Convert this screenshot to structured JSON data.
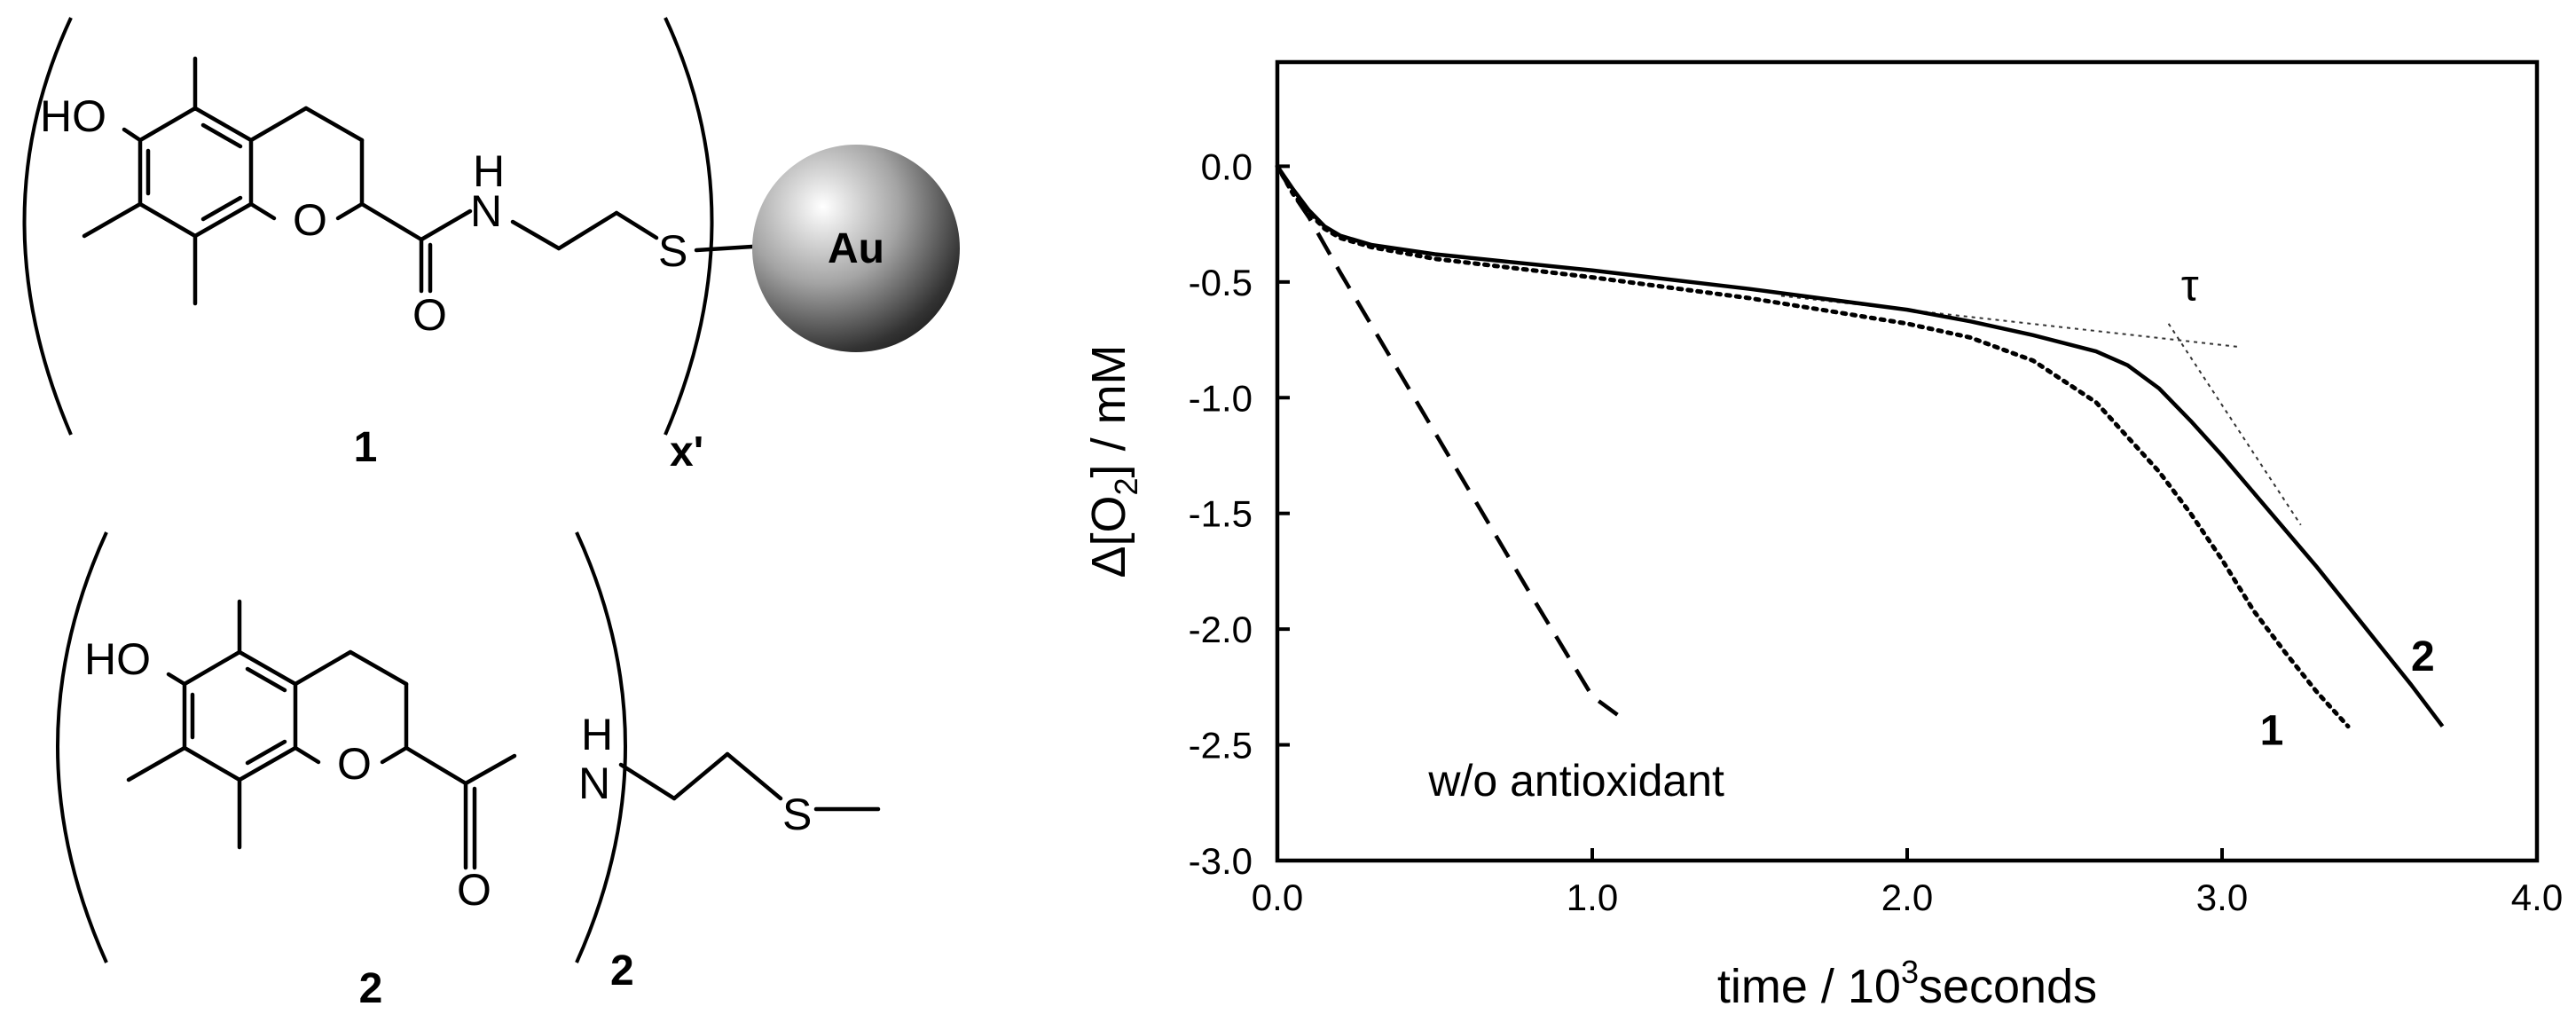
{
  "structures": {
    "one": {
      "label": "1",
      "atoms": {
        "hydroxyl": "HO",
        "ring_oxygen": "O",
        "carbonyl_oxygen": "O",
        "amide_n": "N",
        "amide_h": "H",
        "sulfur": "S",
        "particle": "Au"
      },
      "subscript": "x'"
    },
    "two": {
      "label": "2",
      "atoms": {
        "hydroxyl": "HO",
        "ring_oxygen": "O",
        "carbonyl_oxygen": "O",
        "amide_n": "N",
        "amide_h": "H",
        "sulfur": "S"
      },
      "subscript": "2"
    }
  },
  "chart_data": {
    "type": "line",
    "xlabel": {
      "main": "time  / 10",
      "sup": "3",
      "rest": "seconds"
    },
    "ylabel": {
      "pre": "Δ[O",
      "sub": "2",
      "post": "] / mM"
    },
    "xlim": [
      0,
      4.0
    ],
    "ylim": [
      -3.0,
      0.45
    ],
    "x_ticks": [
      "0.0",
      "1.0",
      "2.0",
      "3.0",
      "4.0"
    ],
    "y_ticks": [
      "0.0",
      "-0.5",
      "-1.0",
      "-1.5",
      "-2.0",
      "-2.5",
      "-3.0"
    ],
    "grid": false,
    "series": [
      {
        "name": "w/o antioxidant",
        "style": "dashed",
        "x": [
          0.0,
          0.05,
          0.1,
          0.2,
          0.4,
          0.6,
          0.8,
          1.0,
          1.08
        ],
        "y": [
          0.0,
          -0.12,
          -0.22,
          -0.46,
          -0.92,
          -1.38,
          -1.84,
          -2.29,
          -2.37
        ]
      },
      {
        "name": "1",
        "style": "dotted",
        "x": [
          0.0,
          0.05,
          0.1,
          0.15,
          0.2,
          0.3,
          0.5,
          1.0,
          1.5,
          2.0,
          2.2,
          2.4,
          2.6,
          2.8,
          2.9,
          3.0,
          3.1,
          3.2,
          3.3,
          3.4
        ],
        "y": [
          0.0,
          -0.12,
          -0.2,
          -0.27,
          -0.31,
          -0.35,
          -0.4,
          -0.48,
          -0.57,
          -0.68,
          -0.74,
          -0.84,
          -1.02,
          -1.32,
          -1.5,
          -1.7,
          -1.92,
          -2.1,
          -2.27,
          -2.42
        ]
      },
      {
        "name": "2",
        "style": "solid",
        "x": [
          0.0,
          0.05,
          0.1,
          0.15,
          0.2,
          0.3,
          0.5,
          1.0,
          1.5,
          2.0,
          2.2,
          2.4,
          2.6,
          2.7,
          2.8,
          2.9,
          3.0,
          3.1,
          3.2,
          3.3,
          3.4,
          3.5,
          3.6,
          3.7
        ],
        "y": [
          0.0,
          -0.1,
          -0.19,
          -0.26,
          -0.3,
          -0.34,
          -0.38,
          -0.45,
          -0.53,
          -0.62,
          -0.67,
          -0.73,
          -0.8,
          -0.86,
          -0.96,
          -1.1,
          -1.25,
          -1.41,
          -1.57,
          -1.73,
          -1.9,
          -2.07,
          -2.24,
          -2.42
        ]
      }
    ],
    "tangents": [
      {
        "x": [
          1.6,
          3.05
        ],
        "y": [
          -0.56,
          -0.78
        ]
      },
      {
        "x": [
          2.83,
          3.25
        ],
        "y": [
          -0.68,
          -1.55
        ]
      }
    ],
    "annotations": [
      {
        "text": "τ",
        "x": 2.87,
        "y": -0.58
      },
      {
        "text": "w/o antioxidant",
        "x": 0.48,
        "y": -2.72
      },
      {
        "text": "1",
        "x": 3.12,
        "y": -2.5,
        "bold": true
      },
      {
        "text": "2",
        "x": 3.6,
        "y": -2.18,
        "bold": true
      }
    ]
  }
}
